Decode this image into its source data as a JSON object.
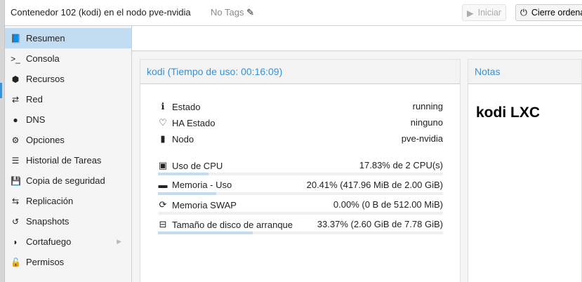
{
  "header": {
    "title": "Contenedor 102 (kodi) en el nodo pve-nvidia",
    "tags": "No Tags",
    "start_label": "Iniciar",
    "shutdown_label": "Cierre ordena"
  },
  "sidebar": {
    "items": [
      {
        "label": "Resumen",
        "icon": "book-icon",
        "glyph": "📘"
      },
      {
        "label": "Consola",
        "icon": "terminal-icon",
        "glyph": ">_"
      },
      {
        "label": "Recursos",
        "icon": "cube-icon",
        "glyph": "⬢"
      },
      {
        "label": "Red",
        "icon": "exchange-icon",
        "glyph": "⇄"
      },
      {
        "label": "DNS",
        "icon": "globe-icon",
        "glyph": "●"
      },
      {
        "label": "Opciones",
        "icon": "gear-icon",
        "glyph": "⚙"
      },
      {
        "label": "Historial de Tareas",
        "icon": "list-icon",
        "glyph": "☰"
      },
      {
        "label": "Copia de seguridad",
        "icon": "floppy-icon",
        "glyph": "💾"
      },
      {
        "label": "Replicación",
        "icon": "retweet-icon",
        "glyph": "⇆"
      },
      {
        "label": "Snapshots",
        "icon": "history-icon",
        "glyph": "↺"
      },
      {
        "label": "Cortafuego",
        "icon": "shield-icon",
        "glyph": "◗"
      },
      {
        "label": "Permisos",
        "icon": "unlock-icon",
        "glyph": "🔓"
      }
    ]
  },
  "status": {
    "title": "kodi (Tiempo de uso: 00:16:09)",
    "info": [
      {
        "label": "Estado",
        "value": "running",
        "glyph": "ℹ"
      },
      {
        "label": "HA Estado",
        "value": "ninguno",
        "glyph": "♡"
      },
      {
        "label": "Nodo",
        "value": "pve-nvidia",
        "glyph": "▮"
      }
    ],
    "usage": [
      {
        "label": "Uso de CPU",
        "value": "17.83% de 2 CPU(s)",
        "percent": 17.83,
        "glyph": "▣"
      },
      {
        "label": "Memoria - Uso",
        "value": "20.41% (417.96 MiB de 2.00 GiB)",
        "percent": 20.41,
        "glyph": "▬"
      },
      {
        "label": "Memoria SWAP",
        "value": "0.00% (0 B de 512.00 MiB)",
        "percent": 0,
        "glyph": "⟳"
      },
      {
        "label": "Tamaño de disco de arranque",
        "value": "33.37% (2.60 GiB de 7.78 GiB)",
        "percent": 33.37,
        "glyph": "⊟"
      }
    ]
  },
  "notes": {
    "title": "Notas",
    "content": "kodi LXC"
  },
  "colors": {
    "accent": "#3892d4",
    "selected": "#c2ddf2"
  }
}
